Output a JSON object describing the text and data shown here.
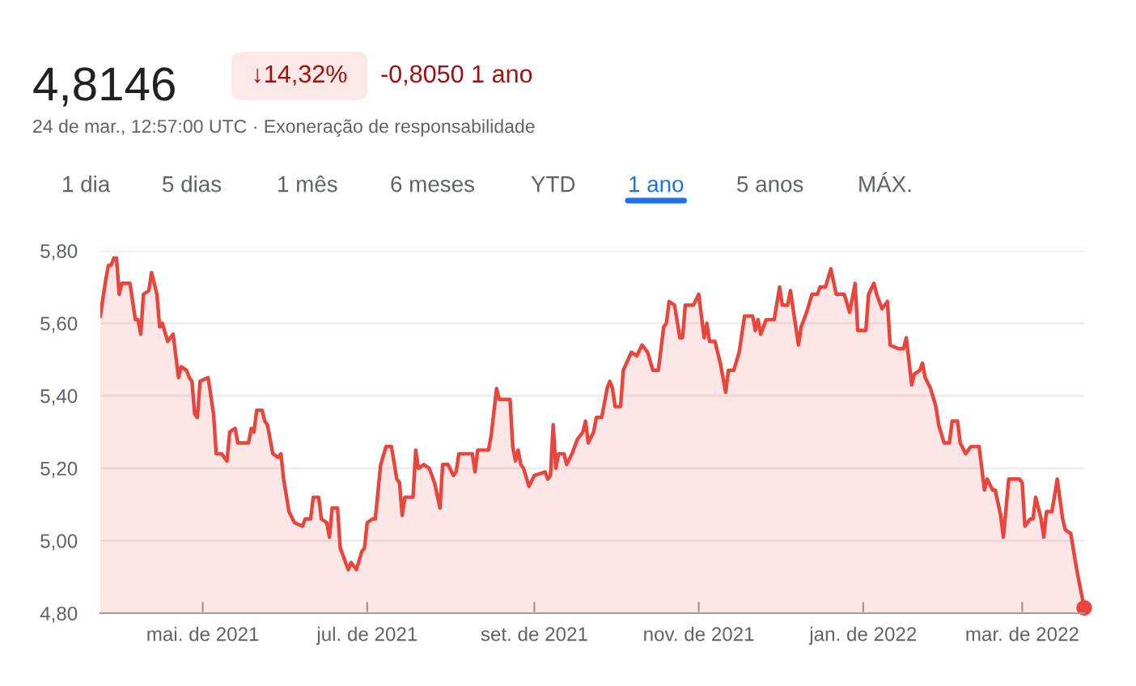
{
  "chart_data": {
    "type": "area",
    "title": "4,8146",
    "subtitle": "24 de mar., 12:57:00 UTC · Exoneração de responsabilidade",
    "annotations": [
      "↓14,32%",
      "-0,8050 1 ano",
      "1 dia",
      "5 dias",
      "1 mês",
      "6 meses",
      "YTD",
      "1 ano",
      "5 anos",
      "MÁX."
    ],
    "x": [
      "2021-03-24",
      "2021-03-26",
      "2021-03-27",
      "2021-03-28",
      "2021-03-29",
      "2021-03-30",
      "2021-03-31",
      "2021-04-01",
      "2021-04-04",
      "2021-04-06",
      "2021-04-07",
      "2021-04-08",
      "2021-04-09",
      "2021-04-11",
      "2021-04-12",
      "2021-04-14",
      "2021-04-15",
      "2021-04-16",
      "2021-04-18",
      "2021-04-20",
      "2021-04-22",
      "2021-04-23",
      "2021-04-25",
      "2021-04-26",
      "2021-04-27",
      "2021-04-28",
      "2021-04-29",
      "2021-04-30",
      "2021-05-03",
      "2021-05-05",
      "2021-05-06",
      "2021-05-08",
      "2021-05-10",
      "2021-05-11",
      "2021-05-13",
      "2021-05-14",
      "2021-05-17",
      "2021-05-18",
      "2021-05-19",
      "2021-05-20",
      "2021-05-21",
      "2021-05-23",
      "2021-05-24",
      "2021-05-25",
      "2021-05-27",
      "2021-05-29",
      "2021-05-30",
      "2021-05-31",
      "2021-06-02",
      "2021-06-04",
      "2021-06-07",
      "2021-06-08",
      "2021-06-10",
      "2021-06-11",
      "2021-06-13",
      "2021-06-14",
      "2021-06-16",
      "2021-06-17",
      "2021-06-18",
      "2021-06-20",
      "2021-06-21",
      "2021-06-22",
      "2021-06-24",
      "2021-06-25",
      "2021-06-27",
      "2021-06-29",
      "2021-06-30",
      "2021-07-01",
      "2021-07-03",
      "2021-07-04",
      "2021-07-06",
      "2021-07-08",
      "2021-07-10",
      "2021-07-12",
      "2021-07-13",
      "2021-07-14",
      "2021-07-15",
      "2021-07-18",
      "2021-07-19",
      "2021-07-20",
      "2021-07-22",
      "2021-07-24",
      "2021-07-26",
      "2021-07-28",
      "2021-07-29",
      "2021-07-31",
      "2021-08-02",
      "2021-08-03",
      "2021-08-04",
      "2021-08-06",
      "2021-08-09",
      "2021-08-10",
      "2021-08-11",
      "2021-08-15",
      "2021-08-16",
      "2021-08-18",
      "2021-08-19",
      "2021-08-23",
      "2021-08-24",
      "2021-08-25",
      "2021-08-26",
      "2021-08-27",
      "2021-08-28",
      "2021-08-30",
      "2021-09-01",
      "2021-09-05",
      "2021-09-06",
      "2021-09-07",
      "2021-09-08",
      "2021-09-09",
      "2021-09-10",
      "2021-09-12",
      "2021-09-13",
      "2021-09-15",
      "2021-09-17",
      "2021-09-19",
      "2021-09-20",
      "2021-09-21",
      "2021-09-23",
      "2021-09-24",
      "2021-09-26",
      "2021-09-28",
      "2021-09-29",
      "2021-09-30",
      "2021-10-01",
      "2021-10-03",
      "2021-10-04",
      "2021-10-07",
      "2021-10-09",
      "2021-10-11",
      "2021-10-12",
      "2021-10-13",
      "2021-10-15",
      "2021-10-17",
      "2021-10-19",
      "2021-10-20",
      "2021-10-21",
      "2021-10-23",
      "2021-10-25",
      "2021-10-26",
      "2021-10-27",
      "2021-10-30",
      "2021-11-01",
      "2021-11-03",
      "2021-11-04",
      "2021-11-05",
      "2021-11-07",
      "2021-11-09",
      "2021-11-11",
      "2021-11-12",
      "2021-11-14",
      "2021-11-16",
      "2021-11-18",
      "2021-11-21",
      "2021-11-22",
      "2021-11-23",
      "2021-11-24",
      "2021-11-26",
      "2021-11-29",
      "2021-12-01",
      "2021-12-02",
      "2021-12-04",
      "2021-12-05",
      "2021-12-08",
      "2021-12-09",
      "2021-12-11",
      "2021-12-13",
      "2021-12-15",
      "2021-12-16",
      "2021-12-18",
      "2021-12-20",
      "2021-12-22",
      "2021-12-25",
      "2021-12-27",
      "2021-12-29",
      "2021-12-30",
      "2022-01-02",
      "2022-01-03",
      "2022-01-05",
      "2022-01-06",
      "2022-01-08",
      "2022-01-10",
      "2022-01-11",
      "2022-01-14",
      "2022-01-16",
      "2022-01-17",
      "2022-01-19",
      "2022-01-20",
      "2022-01-22",
      "2022-01-23",
      "2022-01-24",
      "2022-01-26",
      "2022-01-28",
      "2022-01-29",
      "2022-01-31",
      "2022-02-02",
      "2022-02-03",
      "2022-02-05",
      "2022-02-06",
      "2022-02-08",
      "2022-02-10",
      "2022-02-13",
      "2022-02-15",
      "2022-02-16",
      "2022-02-18",
      "2022-02-19",
      "2022-02-21",
      "2022-02-22",
      "2022-02-24",
      "2022-02-28",
      "2022-03-01",
      "2022-03-02",
      "2022-03-04",
      "2022-03-05",
      "2022-03-06",
      "2022-03-08",
      "2022-03-09",
      "2022-03-10",
      "2022-03-12",
      "2022-03-14",
      "2022-03-16",
      "2022-03-17",
      "2022-03-19",
      "2022-03-21",
      "2022-03-22",
      "2022-03-24"
    ],
    "series": [
      {
        "color": "#e8453c",
        "values": [
          5.62,
          5.72,
          5.76,
          5.76,
          5.78,
          5.78,
          5.68,
          5.71,
          5.71,
          5.61,
          5.61,
          5.57,
          5.68,
          5.69,
          5.74,
          5.68,
          5.59,
          5.6,
          5.55,
          5.57,
          5.45,
          5.48,
          5.47,
          5.45,
          5.44,
          5.35,
          5.34,
          5.44,
          5.45,
          5.35,
          5.24,
          5.24,
          5.22,
          5.3,
          5.31,
          5.27,
          5.27,
          5.27,
          5.31,
          5.3,
          5.36,
          5.36,
          5.33,
          5.32,
          5.24,
          5.23,
          5.24,
          5.17,
          5.08,
          5.05,
          5.04,
          5.06,
          5.06,
          5.12,
          5.12,
          5.06,
          5.05,
          5.01,
          5.09,
          5.09,
          4.98,
          4.96,
          4.92,
          4.94,
          4.92,
          4.97,
          4.98,
          5.05,
          5.06,
          5.06,
          5.21,
          5.26,
          5.26,
          5.17,
          5.16,
          5.07,
          5.12,
          5.12,
          5.25,
          5.2,
          5.21,
          5.2,
          5.16,
          5.09,
          5.21,
          5.21,
          5.18,
          5.19,
          5.24,
          5.24,
          5.24,
          5.19,
          5.25,
          5.25,
          5.29,
          5.42,
          5.39,
          5.39,
          5.26,
          5.22,
          5.25,
          5.21,
          5.2,
          5.15,
          5.18,
          5.19,
          5.17,
          5.18,
          5.32,
          5.2,
          5.24,
          5.24,
          5.21,
          5.24,
          5.28,
          5.3,
          5.33,
          5.27,
          5.3,
          5.34,
          5.34,
          5.42,
          5.44,
          5.42,
          5.37,
          5.37,
          5.47,
          5.52,
          5.51,
          5.54,
          5.53,
          5.52,
          5.47,
          5.47,
          5.59,
          5.6,
          5.66,
          5.65,
          5.56,
          5.56,
          5.65,
          5.65,
          5.68,
          5.56,
          5.6,
          5.55,
          5.55,
          5.49,
          5.41,
          5.47,
          5.47,
          5.52,
          5.62,
          5.62,
          5.58,
          5.61,
          5.57,
          5.61,
          5.61,
          5.7,
          5.65,
          5.65,
          5.69,
          5.54,
          5.59,
          5.63,
          5.68,
          5.68,
          5.7,
          5.7,
          5.75,
          5.68,
          5.68,
          5.63,
          5.71,
          5.58,
          5.58,
          5.68,
          5.71,
          5.68,
          5.64,
          5.66,
          5.54,
          5.53,
          5.53,
          5.56,
          5.43,
          5.46,
          5.47,
          5.49,
          5.45,
          5.42,
          5.37,
          5.32,
          5.27,
          5.27,
          5.33,
          5.33,
          5.27,
          5.24,
          5.26,
          5.26,
          5.14,
          5.17,
          5.14,
          5.14,
          5.07,
          5.01,
          5.17,
          5.17,
          5.16,
          5.04,
          5.06,
          5.06,
          5.12,
          5.06,
          5.01,
          5.08,
          5.08,
          5.17,
          5.06,
          5.03,
          5.02,
          4.93,
          4.89,
          4.8146
        ]
      }
    ],
    "xlim": [
      "2021-03-24",
      "2022-03-24"
    ],
    "xticks": [
      {
        "value": "2021-05-01",
        "label": "mai. de 2021"
      },
      {
        "value": "2021-07-01",
        "label": "jul. de 2021"
      },
      {
        "value": "2021-09-01",
        "label": "set. de 2021"
      },
      {
        "value": "2021-11-01",
        "label": "nov. de 2021"
      },
      {
        "value": "2022-01-01",
        "label": "jan. de 2022"
      },
      {
        "value": "2022-03-01",
        "label": "mar. de 2022"
      }
    ],
    "ylim": [
      4.8,
      5.8
    ],
    "yticks": [
      {
        "value": 4.8,
        "label": "4,80"
      },
      {
        "value": 5.0,
        "label": "5,00"
      },
      {
        "value": 5.2,
        "label": "5,20"
      },
      {
        "value": 5.4,
        "label": "5,40"
      },
      {
        "value": 5.6,
        "label": "5,60"
      },
      {
        "value": 5.8,
        "label": "5,80"
      }
    ],
    "grid": "y"
  }
}
